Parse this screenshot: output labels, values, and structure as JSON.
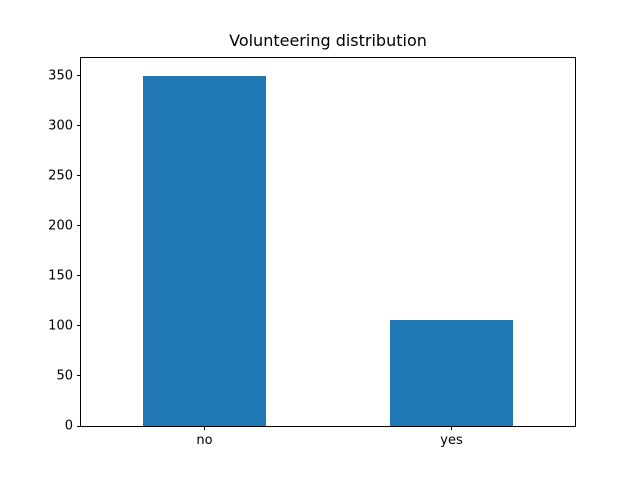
{
  "figure": {
    "background": "#ffffff"
  },
  "chart_data": {
    "type": "bar",
    "title": "Volunteering distribution",
    "categories": [
      "no",
      "yes"
    ],
    "values": [
      350,
      106
    ],
    "xlabel": "",
    "ylabel": "",
    "ylim": [
      0,
      367.5
    ],
    "yticks": [
      0,
      50,
      100,
      150,
      200,
      250,
      300,
      350
    ],
    "bar_color": "#1f77b4",
    "text_color": "#000000",
    "spine_color": "#000000",
    "grid": false,
    "legend_position": "none"
  }
}
